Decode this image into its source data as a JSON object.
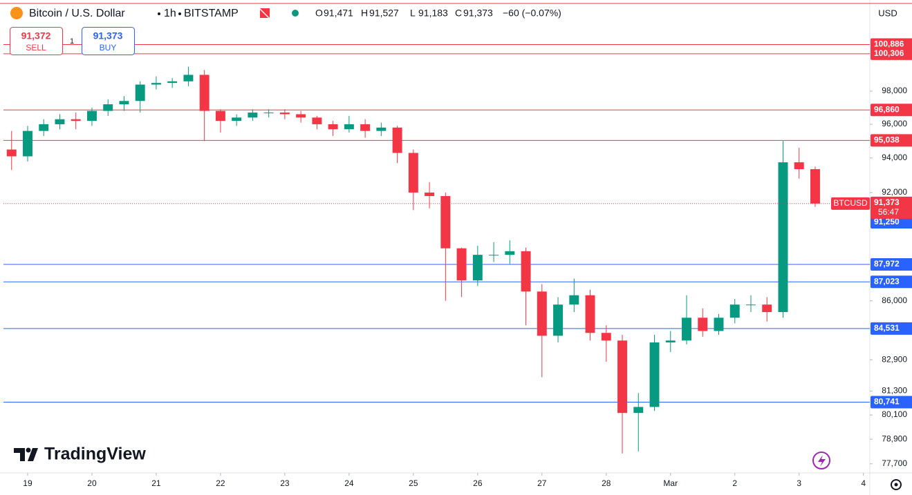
{
  "chart_data": {
    "type": "candlestick",
    "title": "Bitcoin / U.S. Dollar",
    "interval": "1h",
    "exchange": "BITSTAMP",
    "ohlc_legend": [
      {
        "key": "O",
        "label": "91,471"
      },
      {
        "key": "H",
        "label": "91,527"
      },
      {
        "key": "L",
        "label": "91,183"
      },
      {
        "key": "C",
        "label": "91,373"
      }
    ],
    "change": "−60 (−0.07%)",
    "trade": {
      "sell_price": "91,372",
      "sell": "SELL",
      "buy_price": "91,373",
      "buy": "BUY",
      "spread": "1"
    },
    "currency": "USD",
    "watermark": "TradingView",
    "log_scale": true,
    "grid": false,
    "up_color": "#089981",
    "down_color": "#f23645",
    "xlim": [
      18.57,
      32.1
    ],
    "xticks": [
      19,
      20,
      21,
      22,
      23,
      24,
      25,
      26,
      27,
      28,
      {
        "value": 29,
        "label": "Mar"
      },
      {
        "value": 30,
        "label": "2"
      },
      {
        "value": 31,
        "label": "3"
      },
      {
        "value": 32,
        "label": "4"
      }
    ],
    "ylim": [
      77260,
      103500
    ],
    "yticks": [
      {
        "value": 77700,
        "label": "77,700"
      },
      {
        "value": 78900,
        "label": "78,900"
      },
      {
        "value": 80100,
        "label": "80,100"
      },
      {
        "value": 81300,
        "label": "81,300"
      },
      {
        "value": 82900,
        "label": "82,900"
      },
      {
        "value": 86000,
        "label": "86,000"
      },
      {
        "value": 92000,
        "label": "92,000"
      },
      {
        "value": 94000,
        "label": "94,000"
      },
      {
        "value": 96000,
        "label": "96,000"
      },
      {
        "value": 98000,
        "label": "98,000"
      }
    ],
    "levels": [
      {
        "value": 100886,
        "label": "100,886",
        "color": "#f23645"
      },
      {
        "value": 100306,
        "label": "100,306",
        "color": "#f23645"
      },
      {
        "value": 96860,
        "label": "96,860",
        "color": "#f23645"
      },
      {
        "value": 95038,
        "label": "95,038",
        "color": "#f23645"
      },
      {
        "value": 87972,
        "label": "87,972",
        "color": "#2962ff"
      },
      {
        "value": 87023,
        "label": "87,023",
        "color": "#2962ff"
      },
      {
        "value": 84531,
        "label": "84,531",
        "color": "#2962ff"
      },
      {
        "value": 80741,
        "label": "80,741",
        "color": "#2962ff"
      }
    ],
    "bid": {
      "value": 91250,
      "label": "91,250",
      "color": "#2962ff"
    },
    "last": {
      "symbol": "BTCUSD",
      "value": 91373,
      "label": "91,373",
      "countdown": "56:47",
      "color": "#f23645"
    },
    "x": [
      18.75,
      19,
      19.25,
      19.5,
      19.75,
      20,
      20.25,
      20.5,
      20.75,
      21,
      21.25,
      21.5,
      21.75,
      22,
      22.25,
      22.5,
      22.75,
      23,
      23.25,
      23.5,
      23.75,
      24,
      24.25,
      24.5,
      24.75,
      25,
      25.25,
      25.5,
      25.75,
      26,
      26.25,
      26.5,
      26.75,
      27,
      27.25,
      27.5,
      27.75,
      28,
      28.25,
      28.5,
      28.75,
      29,
      29.25,
      29.5,
      29.75,
      30,
      30.25,
      30.5,
      30.75,
      31,
      31.25
    ],
    "open": [
      94500,
      94100,
      95600,
      96000,
      96300,
      96200,
      96800,
      97200,
      97400,
      98400,
      98500,
      98600,
      99000,
      96800,
      96200,
      96400,
      96700,
      96700,
      96600,
      96400,
      96000,
      95700,
      96000,
      95600,
      95800,
      94300,
      92000,
      91800,
      88860,
      87100,
      88500,
      88500,
      88700,
      86500,
      84150,
      85800,
      86300,
      84300,
      83900,
      80200,
      80500,
      83800,
      83900,
      85100,
      84400,
      85100,
      85800,
      85800,
      85400,
      93750,
      93350
    ],
    "high": [
      95600,
      95900,
      96300,
      96600,
      96700,
      97000,
      97500,
      97700,
      98600,
      98900,
      98800,
      99500,
      99300,
      96900,
      96600,
      96900,
      96900,
      96900,
      96800,
      96500,
      96200,
      96500,
      96300,
      96100,
      95900,
      94500,
      92600,
      92000,
      88900,
      89000,
      89200,
      89300,
      88900,
      86900,
      86200,
      87200,
      86600,
      84700,
      84200,
      81200,
      84200,
      84400,
      86300,
      85600,
      85300,
      86100,
      86300,
      86200,
      95000,
      94600,
      93500
    ],
    "low": [
      93300,
      93800,
      95300,
      95700,
      95700,
      95900,
      96500,
      96800,
      96700,
      98100,
      98200,
      98300,
      95000,
      95500,
      95900,
      96200,
      96400,
      96300,
      96100,
      95700,
      95300,
      95500,
      95200,
      95300,
      93700,
      91000,
      91100,
      86000,
      86200,
      86800,
      88100,
      88000,
      84700,
      82000,
      83800,
      85400,
      83900,
      82800,
      78200,
      78300,
      80300,
      83300,
      83700,
      84100,
      84200,
      84800,
      85400,
      84900,
      85100,
      92800,
      91183
    ],
    "close": [
      94100,
      95600,
      96000,
      96300,
      96200,
      96800,
      97200,
      97400,
      98400,
      98500,
      98600,
      99000,
      96800,
      96200,
      96400,
      96700,
      96700,
      96600,
      96400,
      96000,
      95700,
      96000,
      95600,
      95800,
      94300,
      92000,
      91800,
      88860,
      87100,
      88500,
      88500,
      88700,
      86500,
      84150,
      85800,
      86300,
      84300,
      83900,
      80200,
      80500,
      83800,
      83900,
      85100,
      84400,
      85100,
      85800,
      85800,
      85400,
      93750,
      93350,
      91373
    ]
  }
}
